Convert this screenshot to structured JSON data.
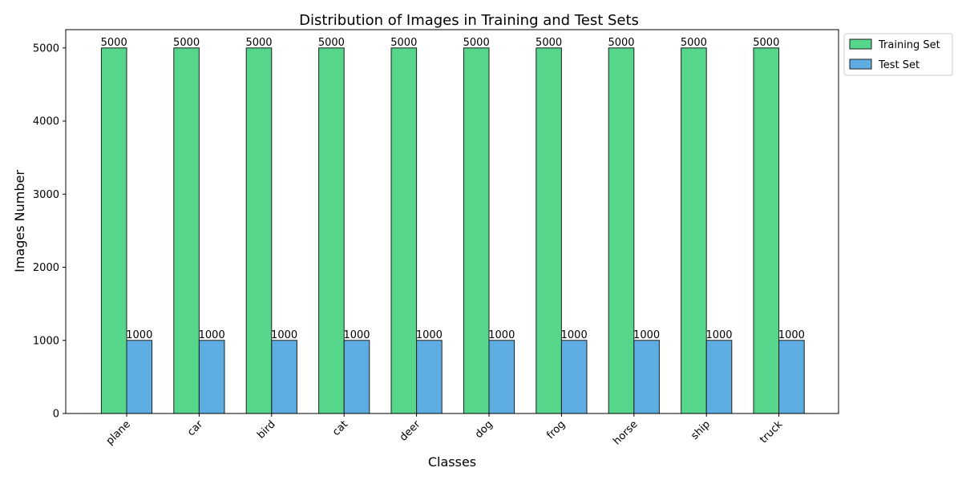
{
  "chart_data": {
    "type": "bar",
    "title": "Distribution of Images in Training and Test Sets",
    "xlabel": "Classes",
    "ylabel": "Images Number",
    "categories": [
      "plane",
      "car",
      "bird",
      "cat",
      "deer",
      "dog",
      "frog",
      "horse",
      "ship",
      "truck"
    ],
    "series": [
      {
        "name": "Training Set",
        "color": "#55d68b",
        "values": [
          5000,
          5000,
          5000,
          5000,
          5000,
          5000,
          5000,
          5000,
          5000,
          5000
        ]
      },
      {
        "name": "Test Set",
        "color": "#5dade2",
        "values": [
          1000,
          1000,
          1000,
          1000,
          1000,
          1000,
          1000,
          1000,
          1000,
          1000
        ]
      }
    ],
    "ylim": [
      0,
      5250
    ],
    "yticks": [
      0,
      1000,
      2000,
      3000,
      4000,
      5000
    ],
    "show_data_labels": true,
    "grid": false,
    "legend_position": "outside top-right",
    "bar_edge_color": "#1f1f1f"
  }
}
